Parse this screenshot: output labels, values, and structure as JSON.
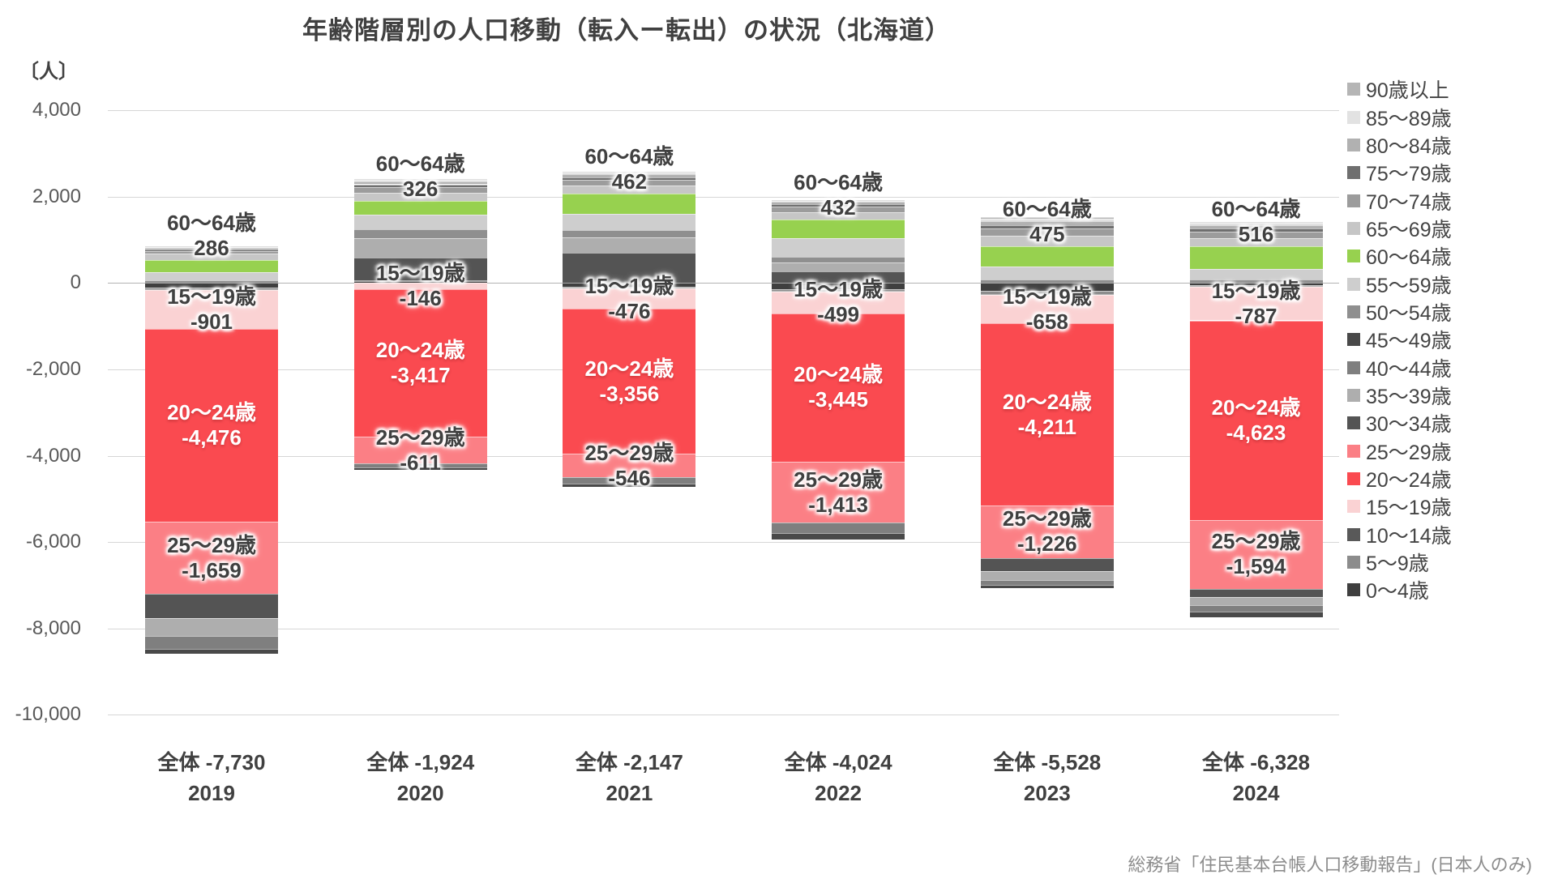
{
  "title": "年齢階層別の人口移動（転入ー転出）の状況（北海道）",
  "unit_label": "〔人〕",
  "source": "総務省「住民基本台帳人口移動報告」(日本人のみ)",
  "chart_data": {
    "type": "bar",
    "stacked": true,
    "grid": true,
    "legend_position": "right",
    "legend_order": "reversed",
    "x": [
      "2019",
      "2020",
      "2021",
      "2022",
      "2023",
      "2024"
    ],
    "totals_labels": [
      "全体 -7,730",
      "全体 -1,924",
      "全体 -2,147",
      "全体 -4,024",
      "全体 -5,528",
      "全体 -6,328"
    ],
    "totals_values": [
      -7730,
      -1924,
      -2147,
      -4024,
      -5528,
      -6328
    ],
    "ylim": [
      -10000,
      4000
    ],
    "yticks": [
      {
        "value": 4000,
        "label": "4,000"
      },
      {
        "value": 2000,
        "label": "2,000"
      },
      {
        "value": 0,
        "label": "0"
      },
      {
        "value": -2000,
        "label": "-2,000"
      },
      {
        "value": -4000,
        "label": "-4,000"
      },
      {
        "value": -6000,
        "label": "-6,000"
      },
      {
        "value": -8000,
        "label": "-8,000"
      },
      {
        "value": -10000,
        "label": "-10,000"
      }
    ],
    "series": [
      {
        "name": "0〜4歳",
        "color": "#3f3f3f",
        "values": [
          -110,
          40,
          -85,
          -140,
          -190,
          -55
        ],
        "estimated": true
      },
      {
        "name": "5〜9歳",
        "color": "#8c8c8c",
        "values": [
          -35,
          20,
          -30,
          -45,
          -65,
          -20
        ],
        "estimated": true
      },
      {
        "name": "10〜14歳",
        "color": "#595959",
        "values": [
          -15,
          4,
          -10,
          -15,
          -25,
          -5
        ],
        "estimated": true
      },
      {
        "name": "15〜19歳",
        "color": "#fad2d3",
        "values": [
          -901,
          -146,
          -476,
          -499,
          -658,
          -787
        ]
      },
      {
        "name": "20〜24歳",
        "color": "#fa4a50",
        "values": [
          -4476,
          -3417,
          -3356,
          -3445,
          -4211,
          -4623
        ]
      },
      {
        "name": "25〜29歳",
        "color": "#fb7f85",
        "values": [
          -1659,
          -611,
          -546,
          -1413,
          -1226,
          -1594
        ]
      },
      {
        "name": "30〜34歳",
        "color": "#545454",
        "values": [
          -560,
          520,
          700,
          260,
          -300,
          -190
        ],
        "estimated": true
      },
      {
        "name": "35〜39歳",
        "color": "#aeaeae",
        "values": [
          -420,
          450,
          361,
          215,
          -200,
          -180
        ],
        "estimated": true
      },
      {
        "name": "40〜44歳",
        "color": "#7f7f7f",
        "values": [
          -300,
          -90,
          -140,
          -240,
          -120,
          -160
        ],
        "estimated": true
      },
      {
        "name": "45〜49歳",
        "color": "#494949",
        "values": [
          -105,
          -60,
          -85,
          -150,
          -64,
          -127
        ],
        "estimated": true
      },
      {
        "name": "50〜54歳",
        "color": "#8f8f8f",
        "values": [
          70,
          210,
          170,
          140,
          90,
          80
        ],
        "estimated": true
      },
      {
        "name": "55〜59歳",
        "color": "#cecece",
        "values": [
          180,
          330,
          370,
          420,
          290,
          250
        ],
        "estimated": true
      },
      {
        "name": "60〜64歳",
        "color": "#97d14f",
        "values": [
          286,
          326,
          462,
          432,
          475,
          516
        ]
      },
      {
        "name": "65〜69歳",
        "color": "#c6c6c6",
        "values": [
          150,
          195,
          190,
          180,
          230,
          200
        ],
        "estimated": true
      },
      {
        "name": "70〜74歳",
        "color": "#9c9c9c",
        "values": [
          60,
          120,
          130,
          120,
          170,
          140
        ],
        "estimated": true
      },
      {
        "name": "75〜79歳",
        "color": "#6f6f6f",
        "values": [
          20,
          70,
          70,
          55,
          90,
          80
        ],
        "estimated": true
      },
      {
        "name": "80〜84歳",
        "color": "#b1b1b1",
        "values": [
          45,
          70,
          70,
          55,
          95,
          80
        ],
        "estimated": true
      },
      {
        "name": "85〜89歳",
        "color": "#e2e2e2",
        "values": [
          25,
          30,
          40,
          30,
          55,
          45
        ],
        "estimated": true
      },
      {
        "name": "90歳以上",
        "color": "#b5b5b5",
        "values": [
          15,
          15,
          18,
          16,
          36,
          22
        ],
        "estimated": true
      }
    ],
    "annotations": [
      {
        "series": "60〜64歳",
        "style": "dark",
        "placement": "above-top",
        "texts": [
          "286",
          "326",
          "462",
          "432",
          "475",
          "516"
        ]
      },
      {
        "series": "15〜19歳",
        "style": "dark",
        "placement": "center",
        "texts": [
          "-901",
          "-146",
          "-476",
          "-499",
          "-658",
          "-787"
        ]
      },
      {
        "series": "20〜24歳",
        "style": "light",
        "placement": "center",
        "texts": [
          "-4,476",
          "-3,417",
          "-3,356",
          "-3,445",
          "-4,211",
          "-4,623"
        ]
      },
      {
        "series": "25〜29歳",
        "style": "dark",
        "placement": "center",
        "texts": [
          "-1,659",
          "-611",
          "-546",
          "-1,413",
          "-1,226",
          "-1,594"
        ]
      }
    ]
  }
}
